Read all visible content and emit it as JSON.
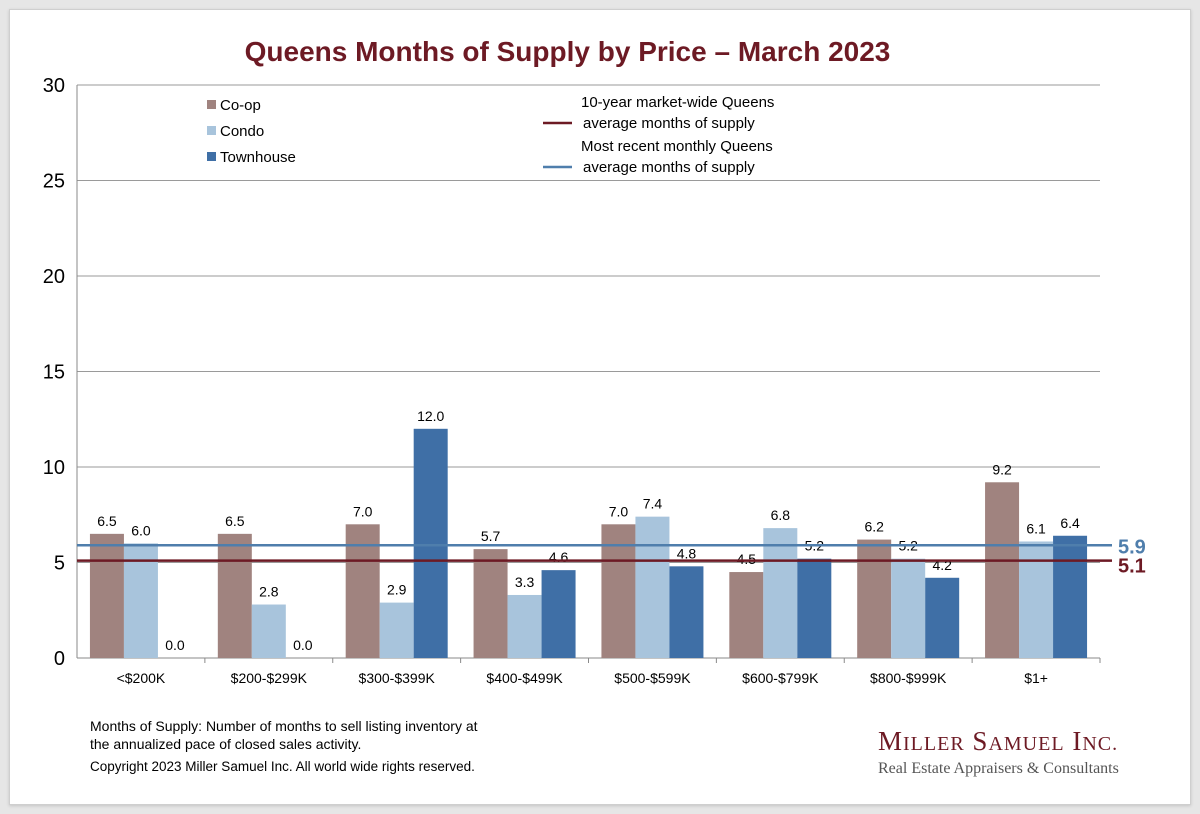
{
  "chart_data": {
    "type": "bar",
    "title": "Queens Months of Supply by Price – March 2023",
    "categories": [
      "<$200K",
      "$200-$299K",
      "$300-$399K",
      "$400-$499K",
      "$500-$599K",
      "$600-$799K",
      "$800-$999K",
      "$1+"
    ],
    "series": [
      {
        "name": "Co-op",
        "color": "#a0837f",
        "values": [
          6.5,
          6.5,
          7.0,
          5.7,
          7.0,
          4.5,
          6.2,
          9.2
        ]
      },
      {
        "name": "Condo",
        "color": "#a8c4dc",
        "values": [
          6.0,
          2.8,
          2.9,
          3.3,
          7.4,
          6.8,
          5.2,
          6.1
        ]
      },
      {
        "name": "Townhouse",
        "color": "#3f6fa6",
        "values": [
          0.0,
          0.0,
          12.0,
          4.6,
          4.8,
          5.2,
          4.2,
          6.4
        ]
      }
    ],
    "reference_lines": [
      {
        "label_lines": [
          "10-year market-wide Queens",
          "average months of supply"
        ],
        "value": 5.1,
        "value_label": "5.1",
        "color": "#6d1a24"
      },
      {
        "label_lines": [
          "Most recent monthly Queens",
          "average months of supply"
        ],
        "value": 5.9,
        "value_label": "5.9",
        "color": "#4f7eac"
      }
    ],
    "ylim": [
      0,
      30
    ],
    "yticks": [
      0,
      5,
      10,
      15,
      20,
      25,
      30
    ],
    "xlabel": "",
    "ylabel": "",
    "grid": true,
    "legend_position": "top-left"
  },
  "footnote": {
    "line1": "Months of Supply: Number of months to sell listing inventory at",
    "line2": "the annualized pace of closed sales activity.",
    "copyright": "Copyright 2023 Miller Samuel Inc.  All world wide rights reserved."
  },
  "brand": {
    "name_first_initial": "M",
    "name_first_rest": "ILLER",
    "name_second_initial": "S",
    "name_second_rest": "AMUEL",
    "name_third_initial": "I",
    "name_third_rest": "NC.",
    "tagline": "Real Estate Appraisers & Consultants"
  }
}
